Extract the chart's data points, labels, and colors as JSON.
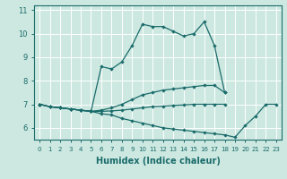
{
  "xlabel": "Humidex (Indice chaleur)",
  "xlim": [
    -0.5,
    23.5
  ],
  "ylim": [
    5.5,
    11.2
  ],
  "yticks": [
    6,
    7,
    8,
    9,
    10,
    11
  ],
  "xticks": [
    0,
    1,
    2,
    3,
    4,
    5,
    6,
    7,
    8,
    9,
    10,
    11,
    12,
    13,
    14,
    15,
    16,
    17,
    18,
    19,
    20,
    21,
    22,
    23
  ],
  "background_color": "#cce8e0",
  "grid_color": "#ffffff",
  "line_color": "#1a6b6b",
  "hours": [
    0,
    1,
    2,
    3,
    4,
    5,
    6,
    7,
    8,
    9,
    10,
    11,
    12,
    13,
    14,
    15,
    16,
    17,
    18,
    19,
    20,
    21,
    22,
    23
  ],
  "line_max": [
    7.0,
    6.9,
    6.85,
    6.8,
    6.75,
    6.7,
    8.6,
    8.5,
    8.8,
    9.5,
    10.4,
    10.3,
    10.3,
    10.1,
    9.9,
    10.0,
    10.5,
    9.5,
    7.5,
    null,
    null,
    null,
    null,
    null
  ],
  "line_upper": [
    7.0,
    6.9,
    6.85,
    6.8,
    6.75,
    6.7,
    6.75,
    6.85,
    7.0,
    7.2,
    7.4,
    7.5,
    7.6,
    7.65,
    7.7,
    7.75,
    7.8,
    7.8,
    7.5,
    null,
    null,
    null,
    null,
    null
  ],
  "line_mean": [
    7.0,
    6.9,
    6.85,
    6.8,
    6.75,
    6.7,
    6.7,
    6.72,
    6.75,
    6.8,
    6.85,
    6.9,
    6.92,
    6.95,
    6.97,
    7.0,
    7.0,
    7.0,
    7.0,
    null,
    null,
    null,
    null,
    null
  ],
  "line_min": [
    7.0,
    6.9,
    6.85,
    6.8,
    6.75,
    6.7,
    6.6,
    6.55,
    6.4,
    6.3,
    6.2,
    6.1,
    6.0,
    5.95,
    5.9,
    5.85,
    5.8,
    5.75,
    5.7,
    5.6,
    6.1,
    6.5,
    7.0,
    7.0
  ]
}
